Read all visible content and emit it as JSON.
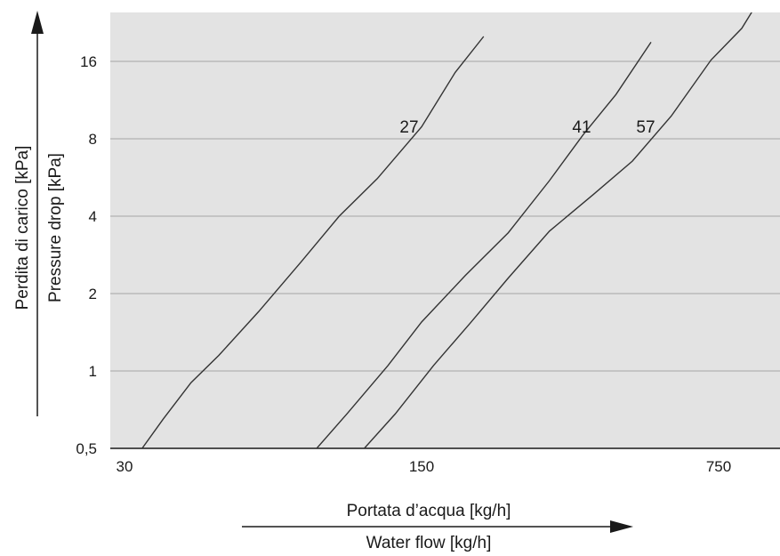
{
  "chart_data": {
    "type": "line",
    "title": "",
    "xlabel": [
      "Portata d’acqua [kg/h]",
      "Water flow [kg/h]"
    ],
    "ylabel": [
      "Perdita di carico [kPa]",
      "Pressure drop [kPa]"
    ],
    "x_scale": "log",
    "y_scale": "log",
    "xlim": [
      30,
      950
    ],
    "ylim": [
      0.5,
      30
    ],
    "x_ticks": [
      30,
      150,
      750
    ],
    "x_tick_labels": [
      "30",
      "150",
      "750"
    ],
    "y_ticks": [
      0.5,
      1,
      2,
      4,
      8,
      16
    ],
    "y_tick_labels": [
      "0,5",
      "1",
      "2",
      "4",
      "8",
      "16"
    ],
    "grid": "horizontal",
    "plot_background": "#e3e3e3",
    "line_color": "#333333",
    "series": [
      {
        "name": "27",
        "x": [
          33,
          37,
          43,
          50,
          62,
          78,
          96,
          118,
          150,
          180,
          210
        ],
        "y": [
          0.5,
          0.65,
          0.9,
          1.15,
          1.7,
          2.65,
          4.0,
          5.6,
          8.9,
          14.5,
          20
        ]
      },
      {
        "name": "41",
        "x": [
          85,
          100,
          125,
          150,
          190,
          240,
          300,
          360,
          430,
          520
        ],
        "y": [
          0.5,
          0.68,
          1.05,
          1.55,
          2.35,
          3.45,
          5.5,
          8.3,
          11.9,
          19.0
        ]
      },
      {
        "name": "57",
        "x": [
          110,
          130,
          160,
          195,
          240,
          300,
          380,
          470,
          580,
          720,
          850,
          950
        ],
        "y": [
          0.5,
          0.68,
          1.05,
          1.53,
          2.3,
          3.5,
          4.85,
          6.55,
          9.8,
          16.2,
          21.5,
          29
        ]
      }
    ],
    "curve_label_values": [
      "27",
      "41",
      "57"
    ]
  }
}
